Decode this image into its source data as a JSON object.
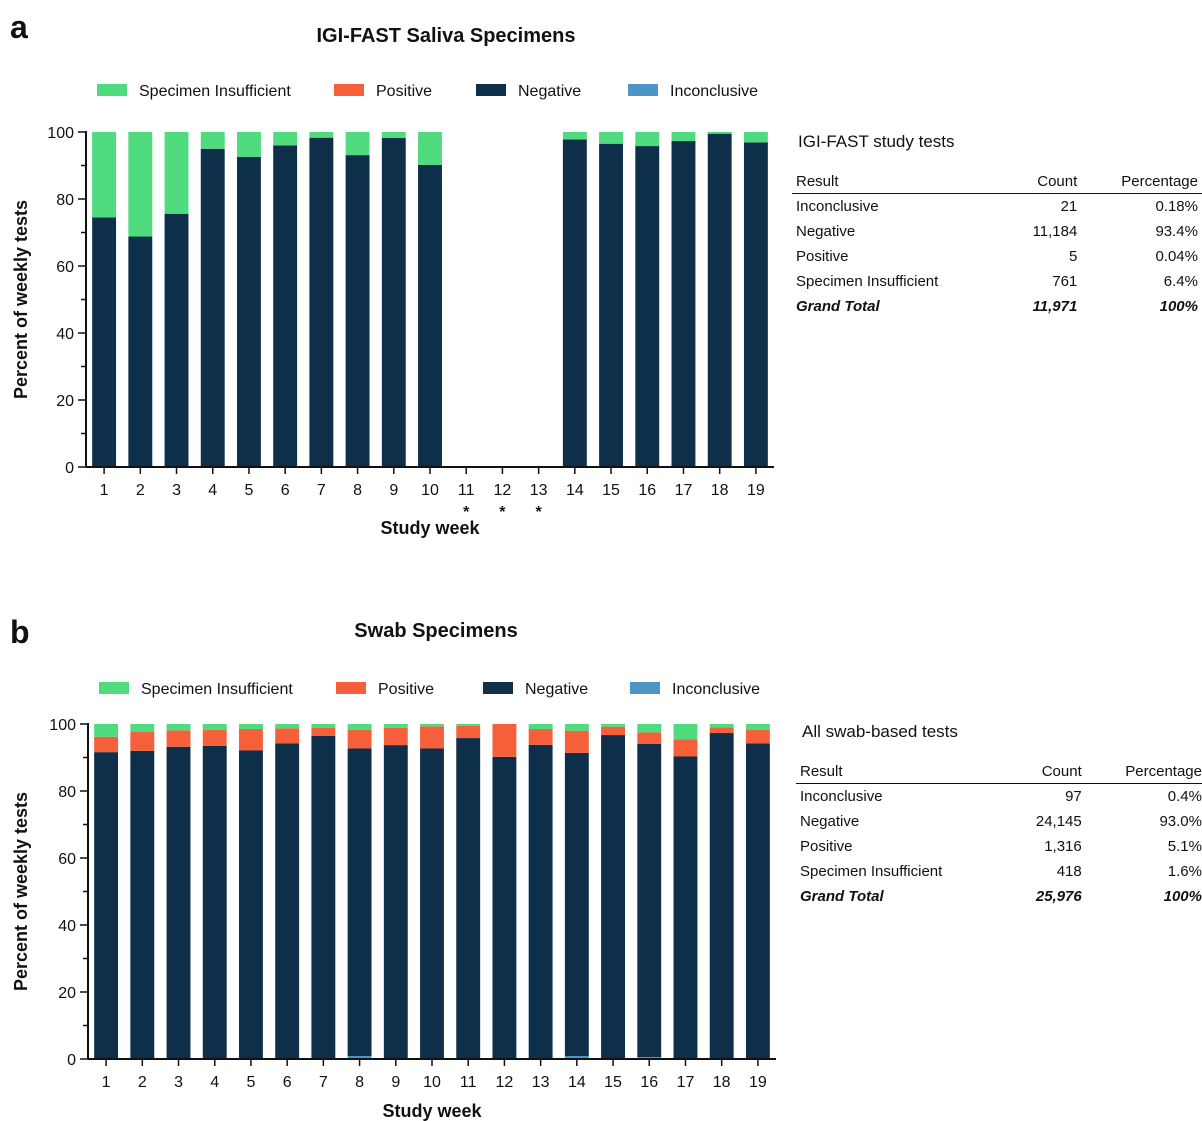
{
  "colors": {
    "specimen_insufficient": "#4fdb7e",
    "positive": "#f5603a",
    "negative": "#0d2f4a",
    "inconclusive": "#4b96c4"
  },
  "panels": [
    {
      "letter": "a",
      "table": {
        "title": "IGI-FAST study tests",
        "headers": [
          "Result",
          "Count",
          "Percentage"
        ],
        "rows": [
          [
            "Inconclusive",
            "21",
            "0.18%"
          ],
          [
            "Negative",
            "11,184",
            "93.4%"
          ],
          [
            "Positive",
            "5",
            "0.04%"
          ],
          [
            "Specimen Insufficient",
            "761",
            "6.4%"
          ]
        ],
        "total": [
          "Grand Total",
          "11,971",
          "100%"
        ]
      }
    },
    {
      "letter": "b",
      "table": {
        "title": "All swab-based tests",
        "headers": [
          "Result",
          "Count",
          "Percentage"
        ],
        "rows": [
          [
            "Inconclusive",
            "97",
            "0.4%"
          ],
          [
            "Negative",
            "24,145",
            "93.0%"
          ],
          [
            "Positive",
            "1,316",
            "5.1%"
          ],
          [
            "Specimen Insufficient",
            "418",
            "1.6%"
          ]
        ],
        "total": [
          "Grand Total",
          "25,976",
          "100%"
        ]
      }
    }
  ],
  "chart_data": [
    {
      "type": "bar",
      "stacked": true,
      "title": "IGI-FAST Saliva Specimens",
      "xlabel": "Study week",
      "ylabel": "Percent of weekly tests",
      "ylim": [
        0,
        100
      ],
      "yticks": [
        0,
        20,
        40,
        60,
        80,
        100
      ],
      "legend": [
        "Specimen Insufficient",
        "Positive",
        "Negative",
        "Inconclusive"
      ],
      "legend_position": "top",
      "categories": [
        "1",
        "2",
        "3",
        "4",
        "5",
        "6",
        "7",
        "8",
        "9",
        "10",
        "11",
        "12",
        "13",
        "14",
        "15",
        "16",
        "17",
        "18",
        "19"
      ],
      "starred_categories": [
        "11",
        "12",
        "13"
      ],
      "star_symbol": "*",
      "series": [
        {
          "name": "Inconclusive",
          "values": [
            0,
            0,
            0,
            0,
            0,
            0,
            0,
            0,
            0,
            0,
            0,
            0,
            0,
            0,
            0,
            0,
            0,
            0,
            0
          ]
        },
        {
          "name": "Negative",
          "values": [
            74.5,
            68.8,
            75.6,
            95.0,
            92.6,
            96.0,
            98.3,
            93.1,
            98.2,
            90.2,
            0,
            0,
            0,
            97.8,
            96.5,
            95.8,
            97.3,
            99.5,
            96.9
          ]
        },
        {
          "name": "Positive",
          "values": [
            0,
            0,
            0,
            0,
            0,
            0,
            0,
            0,
            0,
            0,
            0,
            0,
            0,
            0,
            0,
            0,
            0,
            0,
            0
          ]
        },
        {
          "name": "Specimen Insufficient",
          "values": [
            25.5,
            31.2,
            24.4,
            5.0,
            7.4,
            4.0,
            1.7,
            6.9,
            1.8,
            9.8,
            0,
            0,
            0,
            2.2,
            3.5,
            4.2,
            2.7,
            0.5,
            3.1
          ]
        }
      ]
    },
    {
      "type": "bar",
      "stacked": true,
      "title": "Swab Specimens",
      "xlabel": "Study week",
      "ylabel": "Percent of weekly tests",
      "ylim": [
        0,
        100
      ],
      "yticks": [
        0,
        20,
        40,
        60,
        80,
        100
      ],
      "legend": [
        "Specimen Insufficient",
        "Positive",
        "Negative",
        "Inconclusive"
      ],
      "legend_position": "top",
      "categories": [
        "1",
        "2",
        "3",
        "4",
        "5",
        "6",
        "7",
        "8",
        "9",
        "10",
        "11",
        "12",
        "13",
        "14",
        "15",
        "16",
        "17",
        "18",
        "19"
      ],
      "starred_categories": [],
      "star_symbol": "*",
      "series": [
        {
          "name": "Inconclusive",
          "values": [
            0,
            0,
            0,
            0,
            0,
            0,
            0,
            0.9,
            0,
            0,
            0,
            0,
            0,
            0.9,
            0,
            0.6,
            0,
            0.3,
            0
          ]
        },
        {
          "name": "Negative",
          "values": [
            91.6,
            92.0,
            93.2,
            93.5,
            92.1,
            94.2,
            96.5,
            91.8,
            93.7,
            92.7,
            95.8,
            90.2,
            93.8,
            90.5,
            96.7,
            93.5,
            90.3,
            97.0,
            94.2
          ]
        },
        {
          "name": "Positive",
          "values": [
            4.6,
            5.6,
            4.9,
            4.7,
            6.4,
            4.5,
            2.3,
            5.5,
            5.2,
            6.6,
            3.6,
            9.8,
            4.7,
            6.6,
            2.5,
            3.4,
            5.1,
            1.7,
            4.0
          ]
        },
        {
          "name": "Specimen Insufficient",
          "values": [
            3.8,
            2.4,
            1.9,
            1.8,
            1.5,
            1.3,
            1.2,
            1.8,
            1.1,
            0.7,
            0.6,
            0,
            1.5,
            2.0,
            0.8,
            2.5,
            4.6,
            1.0,
            1.8
          ]
        }
      ]
    }
  ]
}
